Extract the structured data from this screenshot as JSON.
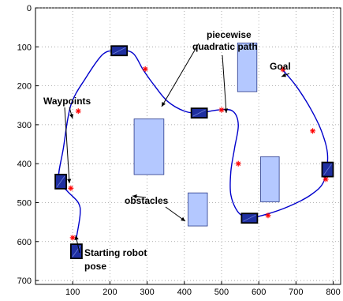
{
  "chart_data": {
    "type": "line",
    "title": "",
    "xlabel": "",
    "ylabel": "",
    "xlim": [
      0,
      820
    ],
    "ylim": [
      0,
      710
    ],
    "y_inverted": true,
    "grid": true,
    "x_ticks": [
      100,
      200,
      300,
      400,
      500,
      600,
      700,
      800
    ],
    "y_ticks": [
      0,
      100,
      200,
      300,
      400,
      500,
      600,
      700
    ],
    "path": {
      "color": "#0000cc",
      "points": [
        [
          110,
          590
        ],
        [
          120,
          530
        ],
        [
          115,
          500
        ],
        [
          85,
          470
        ],
        [
          62,
          440
        ],
        [
          75,
          360
        ],
        [
          95,
          250
        ],
        [
          135,
          180
        ],
        [
          180,
          120
        ],
        [
          215,
          110
        ],
        [
          260,
          115
        ],
        [
          290,
          160
        ],
        [
          320,
          200
        ],
        [
          355,
          240
        ],
        [
          400,
          265
        ],
        [
          440,
          270
        ],
        [
          490,
          262
        ],
        [
          530,
          265
        ],
        [
          545,
          300
        ],
        [
          535,
          360
        ],
        [
          525,
          420
        ],
        [
          525,
          480
        ],
        [
          545,
          525
        ],
        [
          575,
          538
        ],
        [
          620,
          530
        ],
        [
          680,
          510
        ],
        [
          740,
          480
        ],
        [
          775,
          445
        ],
        [
          785,
          380
        ],
        [
          770,
          320
        ],
        [
          740,
          260
        ],
        [
          700,
          200
        ],
        [
          665,
          160
        ]
      ]
    },
    "waypoints": {
      "color": "#ff0000",
      "points": [
        [
          100,
          590
        ],
        [
          95,
          463
        ],
        [
          115,
          265
        ],
        [
          295,
          157
        ],
        [
          500,
          262
        ],
        [
          545,
          400
        ],
        [
          625,
          533
        ],
        [
          780,
          440
        ],
        [
          745,
          316
        ],
        [
          665,
          158
        ]
      ]
    },
    "robot_poses": {
      "fill": "#1f2fa0",
      "points": [
        [
          110,
          625
        ],
        [
          68,
          446
        ],
        [
          225,
          110
        ],
        [
          440,
          270
        ],
        [
          575,
          540
        ],
        [
          785,
          415
        ]
      ]
    },
    "obstacles": {
      "fill": "#b4c8ff",
      "stroke": "#2a3a8a",
      "rects": [
        [
          265,
          285,
          345,
          428
        ],
        [
          410,
          475,
          462,
          560
        ],
        [
          543,
          90,
          595,
          215
        ],
        [
          605,
          382,
          655,
          498
        ]
      ]
    },
    "annotations": {
      "waypoints_label": "Waypoints",
      "path_label_line1": "piecewise",
      "path_label_line2": "quadratic path",
      "goal_label": "Goal",
      "obstacles_label": "obstacles",
      "start_label_line1": "Starting robot",
      "start_label_line2": "pose"
    }
  }
}
